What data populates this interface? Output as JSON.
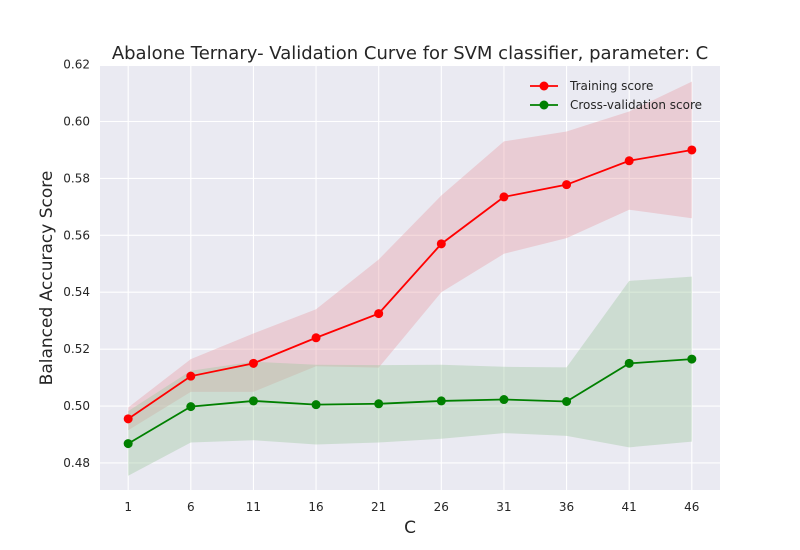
{
  "chart_data": {
    "type": "line",
    "title": "Abalone Ternary- Validation Curve for SVM classifier, parameter: C",
    "xlabel": "C",
    "ylabel": "Balanced Accuracy Score",
    "x": [
      1,
      6,
      11,
      16,
      21,
      26,
      31,
      36,
      41,
      46
    ],
    "x_tick_labels": [
      "1",
      "6",
      "11",
      "16",
      "21",
      "26",
      "31",
      "36",
      "41",
      "46"
    ],
    "y_ticks": [
      0.48,
      0.5,
      0.52,
      0.54,
      0.56,
      0.58,
      0.6,
      0.62
    ],
    "y_tick_labels": [
      "0.48",
      "0.50",
      "0.52",
      "0.54",
      "0.56",
      "0.58",
      "0.60",
      "0.62"
    ],
    "xlim": [
      -1.25,
      48.25
    ],
    "ylim": [
      0.4705,
      0.6195
    ],
    "grid": true,
    "legend_position": "top-right",
    "series": [
      {
        "name": "Training score",
        "color": "#ff0000",
        "band_color": "#e8a0a8",
        "values": [
          0.4955,
          0.5105,
          0.515,
          0.524,
          0.5325,
          0.557,
          0.5735,
          0.5778,
          0.5862,
          0.59
        ],
        "lower": [
          0.4915,
          0.505,
          0.505,
          0.514,
          0.5135,
          0.54,
          0.5535,
          0.559,
          0.569,
          0.566
        ],
        "upper": [
          0.4995,
          0.5165,
          0.5255,
          0.534,
          0.5515,
          0.574,
          0.593,
          0.5965,
          0.6035,
          0.614
        ]
      },
      {
        "name": "Cross-validation score",
        "color": "#008000",
        "band_color": "#9fc99f",
        "values": [
          0.4868,
          0.4998,
          0.5018,
          0.5005,
          0.5008,
          0.5018,
          0.5023,
          0.5016,
          0.515,
          0.5165
        ],
        "lower": [
          0.4755,
          0.4872,
          0.488,
          0.4865,
          0.4872,
          0.4885,
          0.4905,
          0.4895,
          0.4855,
          0.4875
        ],
        "upper": [
          0.4982,
          0.5124,
          0.5156,
          0.5145,
          0.5144,
          0.5145,
          0.5138,
          0.5136,
          0.544,
          0.5455
        ]
      }
    ]
  }
}
